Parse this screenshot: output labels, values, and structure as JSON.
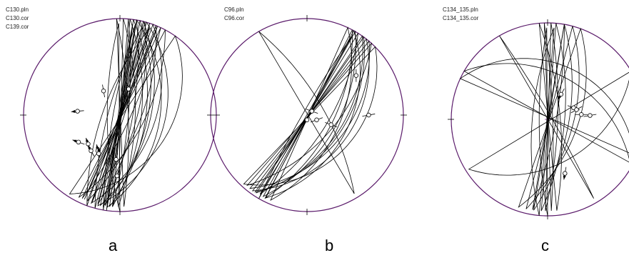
{
  "colors": {
    "primitive_circle": "#5a1a6a",
    "lines": "#000000",
    "center_mark": "#7a2a8a",
    "background": "#ffffff"
  },
  "panels": [
    {
      "id": "a",
      "letter": "a",
      "files": [
        "C130.pln",
        "C130.cor",
        "C139.cor"
      ]
    },
    {
      "id": "b",
      "letter": "b",
      "files": [
        "C96.pln",
        "C96.cor"
      ]
    },
    {
      "id": "c",
      "letter": "c",
      "files": [
        "C134_135.pln",
        "C134_135.cor"
      ]
    }
  ]
}
